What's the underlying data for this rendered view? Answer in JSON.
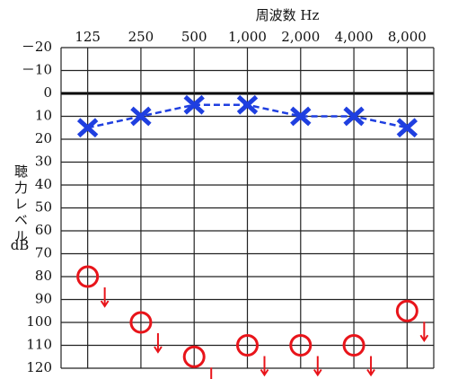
{
  "chart_data": {
    "type": "audiogram",
    "title": "周波数 Hz",
    "y_label": "聴力レベル",
    "y_unit": "dB",
    "categories": [
      "125",
      "250",
      "500",
      "1,000",
      "2,000",
      "4,000",
      "8,000"
    ],
    "series": [
      {
        "color": "#1f3fe0",
        "marker": "x",
        "dashed": true,
        "values": [
          15,
          10,
          5,
          5,
          10,
          10,
          15
        ]
      },
      {
        "color": "#e8141a",
        "marker": "circle-arrow",
        "values": [
          80,
          100,
          115,
          110,
          110,
          110,
          95
        ]
      }
    ],
    "ylim": [
      -20,
      120
    ],
    "y_inverted": true,
    "yticks": [
      {
        "value": -20,
        "label": "－20"
      },
      {
        "value": -10,
        "label": "－10"
      },
      0,
      10,
      20,
      30,
      40,
      50,
      60,
      70,
      80,
      90,
      100,
      110,
      120
    ],
    "grid": true,
    "zero_line": true
  }
}
